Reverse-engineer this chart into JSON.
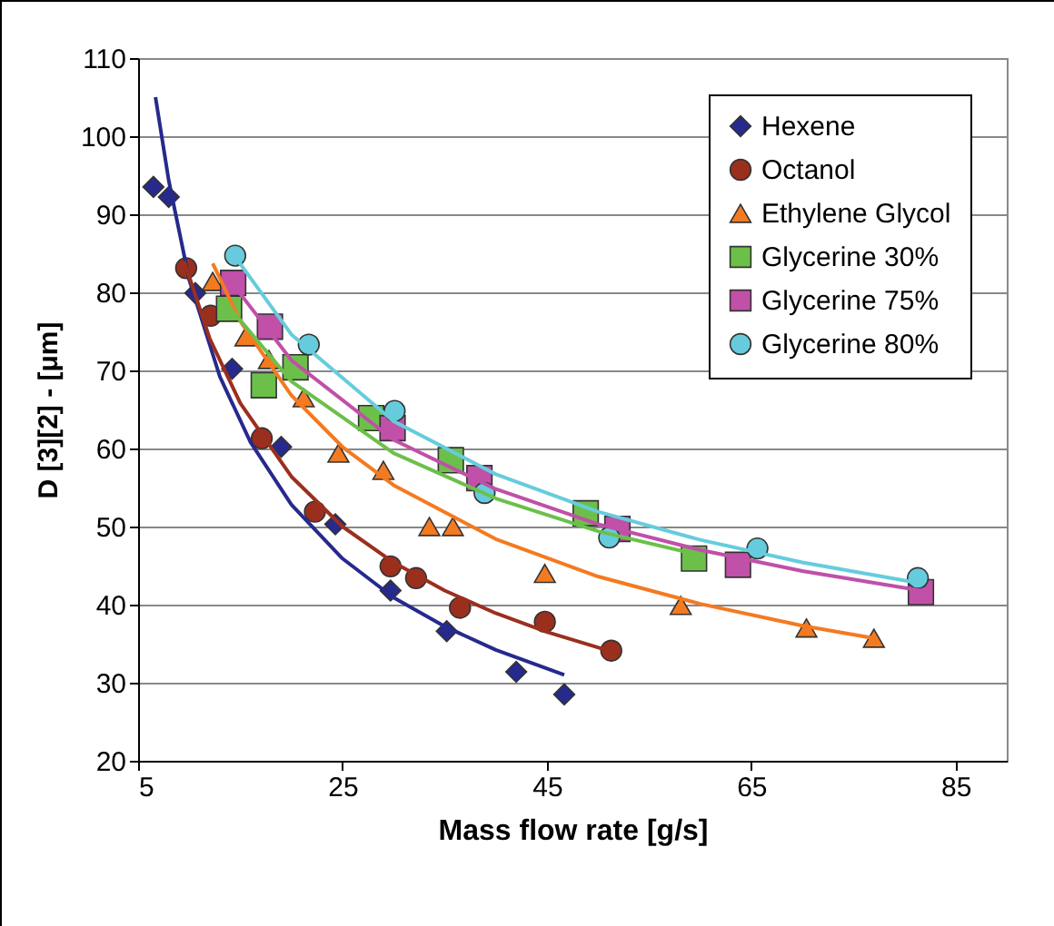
{
  "chart_data": {
    "type": "scatter",
    "xlabel": "Mass flow rate [g/s]",
    "ylabel": "D [3][2] - [μm]",
    "xlim": [
      5,
      90
    ],
    "ylim": [
      20,
      110
    ],
    "xticks": [
      5,
      25,
      45,
      65,
      85
    ],
    "yticks": [
      20,
      30,
      40,
      50,
      60,
      70,
      80,
      90,
      100,
      110
    ],
    "grid": "y",
    "legend": "top right",
    "series": [
      {
        "name": "Hexene",
        "type": "scatter",
        "marker": "diamond",
        "color": "#262a8c",
        "x": [
          6.5,
          8.0,
          10.6,
          14.2,
          19.0,
          24.3,
          29.7,
          35.2,
          42.0,
          46.7
        ],
        "values": [
          93.5,
          92.2,
          79.9,
          70.2,
          60.2,
          50.3,
          41.8,
          36.6,
          31.4,
          28.5
        ]
      },
      {
        "name": "Octanol",
        "type": "scatter",
        "marker": "circle",
        "color": "#9b2f1e",
        "x": [
          9.7,
          12.1,
          17.1,
          22.3,
          29.7,
          32.2,
          36.5,
          44.8,
          51.3
        ],
        "values": [
          83.1,
          77.0,
          61.3,
          51.9,
          44.9,
          43.4,
          39.6,
          37.8,
          34.1
        ]
      },
      {
        "name": "Ethylene Glycol",
        "type": "scatter",
        "marker": "triangle",
        "color": "#f47a20",
        "x": [
          12.3,
          15.5,
          17.8,
          21.2,
          24.6,
          29.0,
          33.5,
          35.8,
          44.8,
          58.1,
          70.4,
          77.0
        ],
        "values": [
          81.4,
          74.3,
          71.4,
          66.5,
          59.4,
          57.2,
          50.0,
          50.0,
          44.0,
          39.9,
          37.0,
          35.7
        ]
      },
      {
        "name": "Glycerine 30%",
        "type": "scatter",
        "marker": "square",
        "color": "#6cc04a",
        "x": [
          13.9,
          17.3,
          20.4,
          27.8,
          35.6,
          48.8,
          59.4
        ],
        "values": [
          77.9,
          68.1,
          70.4,
          63.9,
          58.5,
          51.7,
          45.9
        ]
      },
      {
        "name": "Glycerine 75%",
        "type": "scatter",
        "marker": "square",
        "color": "#c050a8",
        "x": [
          14.3,
          17.9,
          29.9,
          38.4,
          51.9,
          63.7,
          81.6
        ],
        "values": [
          81.2,
          75.6,
          62.6,
          56.2,
          49.7,
          45.1,
          41.6
        ]
      },
      {
        "name": "Glycerine 80%",
        "type": "scatter",
        "marker": "circle",
        "color": "#66ccdd",
        "x": [
          14.5,
          21.7,
          30.1,
          38.9,
          51.1,
          65.6,
          81.3
        ],
        "values": [
          84.7,
          73.3,
          64.8,
          54.3,
          48.6,
          47.2,
          43.4
        ]
      },
      {
        "type": "line",
        "color": "#262a8c",
        "x": [
          6.7,
          8,
          10,
          13,
          16,
          20,
          25,
          30,
          35,
          40,
          46.7
        ],
        "values": [
          105,
          94.3,
          81.6,
          69.2,
          60.8,
          52.8,
          45.9,
          40.9,
          37.2,
          34.2,
          31.0
        ]
      },
      {
        "type": "line",
        "color": "#9b2f1e",
        "x": [
          9.5,
          12,
          15,
          20,
          25,
          30,
          35,
          40,
          45,
          51.3
        ],
        "values": [
          84,
          74.1,
          65.8,
          56.4,
          50.0,
          45.4,
          41.8,
          38.9,
          36.5,
          34.0
        ]
      },
      {
        "type": "line",
        "color": "#f47a20",
        "x": [
          12.3,
          15,
          20,
          25,
          30,
          40,
          50,
          60,
          70,
          77
        ],
        "values": [
          83.7,
          76.3,
          66.8,
          60.2,
          55.3,
          48.4,
          43.6,
          40.1,
          37.3,
          35.7
        ]
      },
      {
        "type": "line",
        "color": "#6cc04a",
        "x": [
          14,
          20,
          30,
          40,
          50,
          59.4
        ],
        "values": [
          78,
          68.6,
          59.4,
          53.6,
          49.4,
          46.5
        ]
      },
      {
        "type": "line",
        "color": "#c050a8",
        "x": [
          14.3,
          20,
          30,
          40,
          50,
          60,
          70,
          81.6
        ],
        "values": [
          81,
          71.3,
          61.1,
          54.8,
          50.3,
          47.0,
          44.3,
          41.8
        ]
      },
      {
        "type": "line",
        "color": "#66ccdd",
        "x": [
          14.8,
          20,
          30,
          40,
          50,
          60,
          70,
          81.3
        ],
        "values": [
          84,
          74.6,
          63.5,
          56.7,
          51.9,
          48.3,
          45.4,
          42.8
        ]
      }
    ]
  }
}
